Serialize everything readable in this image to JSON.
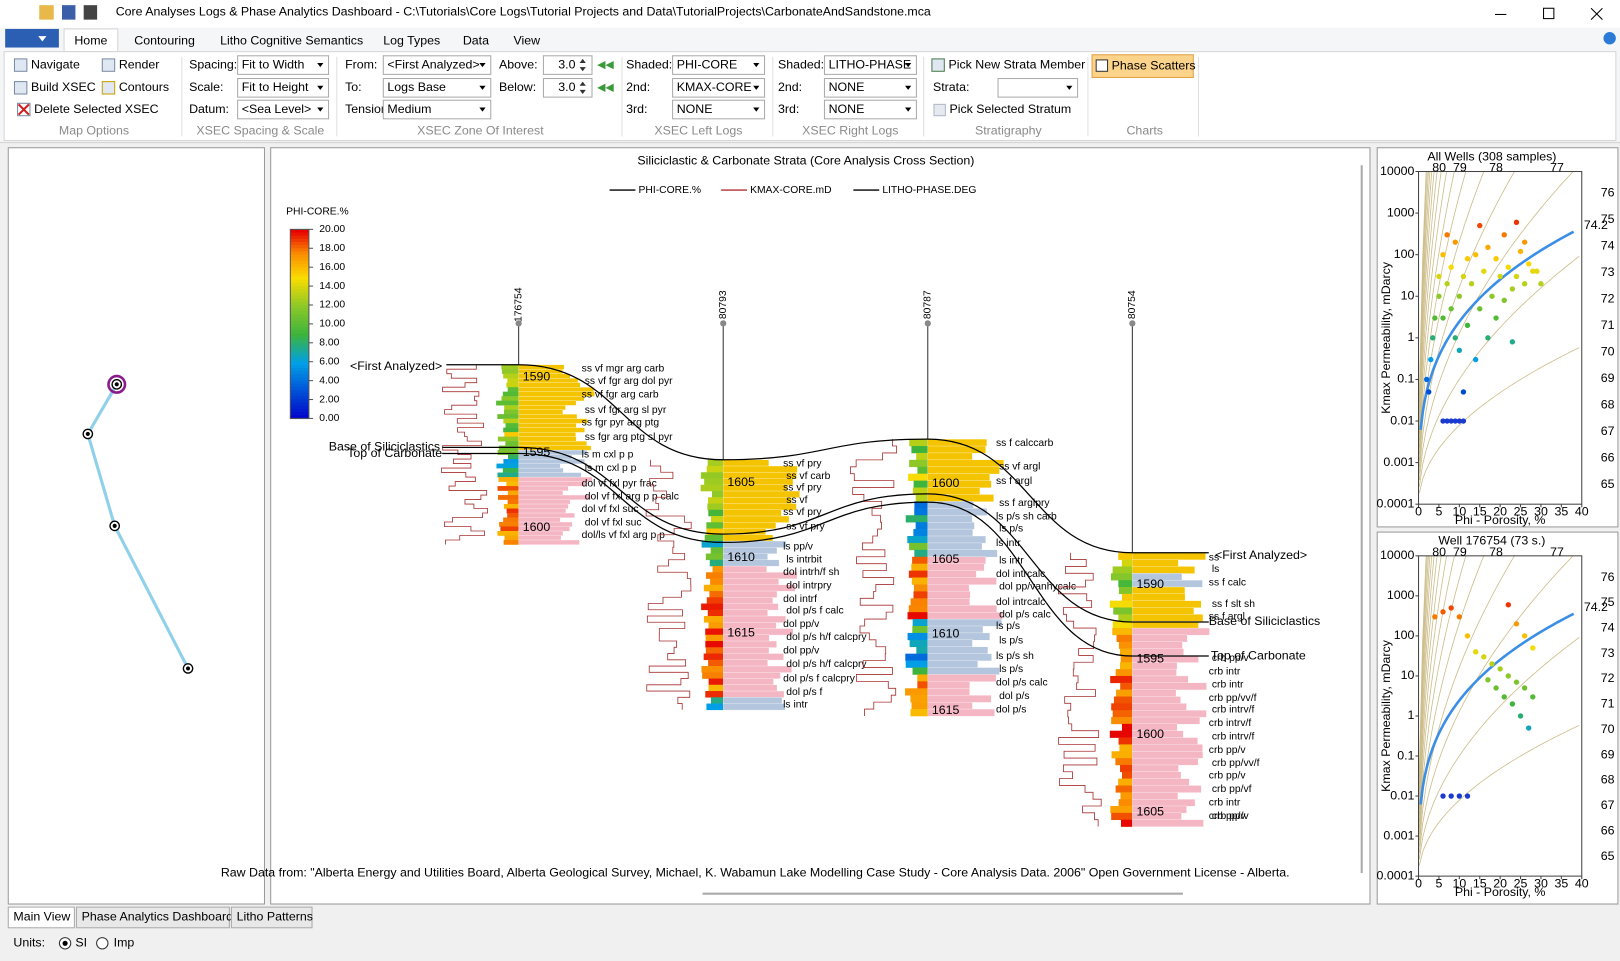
{
  "window": {
    "title": "Core Analyses Logs & Phase Analytics Dashboard - C:\\Tutorials\\Core Logs\\Tutorial Projects and Data\\TutorialProjects\\CarbonateAndSandstone.mca"
  },
  "ribbon": {
    "tabs": [
      "Home",
      "Contouring",
      "Litho Cognitive Semantics",
      "Log Types",
      "Data",
      "View"
    ],
    "groups": [
      {
        "label": "Map Options",
        "buttons": [
          "Navigate",
          "Render",
          "Build XSEC",
          "Contours",
          "Delete Selected XSEC"
        ]
      },
      {
        "label": "XSEC Spacing & Scale",
        "fields": [
          {
            "label": "Spacing:",
            "value": "Fit to Width"
          },
          {
            "label": "Scale:",
            "value": "Fit to Height"
          },
          {
            "label": "Datum:",
            "value": "<Sea Level>"
          }
        ]
      },
      {
        "label": "XSEC Zone Of Interest",
        "fields": [
          {
            "label": "From:",
            "value": "<First Analyzed>"
          },
          {
            "label": "To:",
            "value": "Logs Base"
          },
          {
            "label": "Tension:",
            "value": "Medium"
          }
        ],
        "spinners": [
          {
            "label": "Above:",
            "value": "3.0"
          },
          {
            "label": "Below:",
            "value": "3.0"
          }
        ]
      },
      {
        "label": "XSEC Left Logs",
        "fields": [
          {
            "label": "Shaded:",
            "value": "PHI-CORE"
          },
          {
            "label": "2nd:",
            "value": "KMAX-CORE"
          },
          {
            "label": "3rd:",
            "value": "NONE"
          }
        ]
      },
      {
        "label": "XSEC Right Logs",
        "fields": [
          {
            "label": "Shaded:",
            "value": "LITHO-PHASE"
          },
          {
            "label": "2nd:",
            "value": "NONE"
          },
          {
            "label": "3rd:",
            "value": "NONE"
          }
        ]
      },
      {
        "label": "Stratigraphy",
        "buttons": [
          "Pick New Strata Member",
          "Pick Selected Stratum"
        ],
        "fields": [
          {
            "label": "Strata:"
          }
        ]
      },
      {
        "label": "Charts",
        "buttons": [
          "Phase Scatters"
        ]
      }
    ]
  },
  "cross_section": {
    "title": "Siliciclastic & Carbonate Strata (Core Analysis Cross Section)",
    "legend": [
      "PHI-CORE.%",
      "KMAX-CORE.mD",
      "LITHO-PHASE.DEG"
    ],
    "colorbar": {
      "label": "PHI-CORE.%",
      "lim": [
        0,
        20
      ],
      "ticks": [
        {
          "value": 20,
          "label": "20.00"
        },
        {
          "value": 18,
          "label": "18.00"
        },
        {
          "value": 16,
          "label": "16.00"
        },
        {
          "value": 14,
          "label": "14.00"
        },
        {
          "value": 12,
          "label": "12.00"
        },
        {
          "value": 10,
          "label": "10.00"
        },
        {
          "value": 8,
          "label": "8.00"
        },
        {
          "value": 6,
          "label": "6.00"
        },
        {
          "value": 4,
          "label": "4.00"
        },
        {
          "value": 2,
          "label": "2.00"
        },
        {
          "value": 0,
          "label": "0.00"
        }
      ]
    },
    "wells": [
      {
        "name": "176754",
        "depths": [
          "1590",
          "1595",
          "1600"
        ],
        "lithology": [
          "ss vf mgr arg carb",
          "ss vf fgr arg dol pyr",
          "ss vf fgr arg carb",
          "ss vf fgr arg sl pyr",
          "ss fgr pyr arg ptg",
          "ss fgr arg ptg sl pyr",
          "ls m cxl p p",
          "ls m cxl p p",
          "dol vf fxl pyr frac",
          "dol vf fxl arg p p calc",
          "dol vf fxl suc",
          "dol vf fxl suc",
          "dol/ls vf fxl arg p p"
        ]
      },
      {
        "name": "80793",
        "depths": [
          "1605",
          "1610",
          "1615"
        ],
        "lithology": [
          "ss vf pry",
          "ss vf carb",
          "ss vf pry",
          "ss vf",
          "ss vf pry",
          "ss vf pry",
          "ls pp/v",
          "ls intrbit",
          "dol intrh/f sh",
          "dol intrpry",
          "dol intrf",
          "dol p/s f calc",
          "dol pp/v",
          "dol p/s h/f calcpry",
          "dol pp/v",
          "dol p/s h/f calcpry",
          "dol p/s f calcpry",
          "dol p/s f",
          "ls intr"
        ]
      },
      {
        "name": "80787",
        "depths": [
          "1600",
          "1605",
          "1610",
          "1615"
        ],
        "lithology": [
          "ss f calccarb",
          "ss vf argl",
          "ss f argl",
          "ss f arglpry",
          "ls p/s sh carb",
          "ls p/s",
          "ls intr",
          "ls intr",
          "dol intrcalc",
          "dol pp/vanhycalc",
          "dol intrcalc",
          "dol p/s calc",
          "ls p/s",
          "ls p/s",
          "ls p/s sh",
          "ls p/s",
          "dol p/s calc",
          "dol p/s",
          "dol p/s"
        ]
      },
      {
        "name": "80754",
        "depths": [
          "1590",
          "1595",
          "1600",
          "1605"
        ],
        "lithology": [
          "ss",
          "ls",
          "ss f calc",
          "ss f slt sh",
          "ss f argl",
          "crb pp/v",
          "crb intr",
          "crb intr",
          "crb pp/vv/f",
          "crb intrv/f",
          "crb intrv/f",
          "crb intrv/f",
          "crb pp/v",
          "crb pp/vv/f",
          "crb pp/v",
          "crb pp/vf",
          "crb intr",
          "crb pp/v",
          "crb pp/v"
        ]
      }
    ],
    "markers": [
      "<First Analyzed>",
      "Base of Siliciclastics",
      "Top of Carbonate",
      "<First Analyzed>",
      "Base of Siliciclastics",
      "Top of Carbonate"
    ],
    "footnote": "Raw Data from: \"Alberta Energy and Utilities Board, Alberta Geological Survey, Michael, K. Wabamun Lake Modelling Case Study - Core Analysis Data. 2006\" Open Government License - Alberta."
  },
  "scatters": [
    {
      "type": "scatter",
      "title": "All Wells (308 samples)",
      "y_label": "Kmax Permeability, mDarcy",
      "x_label": "Phi - Porosity, %",
      "xlim": [
        0,
        40
      ],
      "ylim": [
        0.0001,
        10000
      ],
      "log_y": true,
      "xticks": [
        0,
        5,
        10,
        15,
        20,
        25,
        30,
        35,
        40
      ],
      "yticks": [
        10000,
        1000,
        100,
        10,
        1,
        0.1,
        0.01,
        0.001,
        0.0001
      ],
      "iso_top": [
        80,
        79,
        78,
        77
      ],
      "iso_right": [
        76,
        75,
        74,
        73,
        72,
        71,
        70,
        69,
        68,
        67,
        66,
        65
      ],
      "fit_label": "74.2",
      "points": [
        [
          2,
          0.1
        ],
        [
          2.5,
          0.05
        ],
        [
          3,
          0.3
        ],
        [
          3.5,
          1
        ],
        [
          4,
          3
        ],
        [
          5,
          10
        ],
        [
          5,
          30
        ],
        [
          6,
          3
        ],
        [
          6,
          100
        ],
        [
          7,
          300
        ],
        [
          7,
          20
        ],
        [
          8,
          5
        ],
        [
          8,
          50
        ],
        [
          9,
          1
        ],
        [
          9,
          200
        ],
        [
          10,
          10
        ],
        [
          10,
          0.5
        ],
        [
          11,
          30
        ],
        [
          11,
          0.05
        ],
        [
          12,
          80
        ],
        [
          12,
          2
        ],
        [
          13,
          20
        ],
        [
          14,
          0.3
        ],
        [
          14,
          100
        ],
        [
          15,
          5
        ],
        [
          15,
          500
        ],
        [
          16,
          40
        ],
        [
          17,
          1
        ],
        [
          17,
          150
        ],
        [
          18,
          10
        ],
        [
          19,
          3
        ],
        [
          19,
          80
        ],
        [
          20,
          30
        ],
        [
          21,
          8
        ],
        [
          21,
          300
        ],
        [
          22,
          50
        ],
        [
          23,
          15
        ],
        [
          23,
          0.8
        ],
        [
          24,
          600
        ],
        [
          24,
          30
        ],
        [
          25,
          120
        ],
        [
          26,
          20
        ],
        [
          26,
          200
        ],
        [
          27,
          60
        ],
        [
          28,
          40
        ],
        [
          29,
          40
        ],
        [
          30,
          20
        ],
        [
          6,
          0.01
        ],
        [
          7,
          0.01
        ],
        [
          8,
          0.01
        ],
        [
          9,
          0.01
        ],
        [
          10,
          0.01
        ],
        [
          11,
          0.01
        ]
      ]
    },
    {
      "type": "scatter",
      "title": "Well 176754 (73 s.)",
      "y_label": "Kmax Permeability, mDarcy",
      "x_label": "Phi - Porosity, %",
      "xlim": [
        0,
        40
      ],
      "ylim": [
        0.0001,
        10000
      ],
      "log_y": true,
      "xticks": [
        0,
        5,
        10,
        15,
        20,
        25,
        30,
        35,
        40
      ],
      "yticks": [
        10000,
        1000,
        100,
        10,
        1,
        0.1,
        0.01,
        0.001,
        0.0001
      ],
      "iso_top": [
        80,
        79,
        78,
        77
      ],
      "iso_right": [
        76,
        75,
        74,
        73,
        72,
        71,
        70,
        69,
        68,
        67,
        66,
        65
      ],
      "fit_label": "74.2",
      "points": [
        [
          4,
          300
        ],
        [
          6,
          400
        ],
        [
          8,
          500
        ],
        [
          10,
          300
        ],
        [
          12,
          100
        ],
        [
          14,
          40
        ],
        [
          16,
          30
        ],
        [
          18,
          20
        ],
        [
          20,
          15
        ],
        [
          22,
          600
        ],
        [
          24,
          200
        ],
        [
          26,
          100
        ],
        [
          28,
          50
        ],
        [
          17,
          8
        ],
        [
          19,
          5
        ],
        [
          21,
          3
        ],
        [
          23,
          2
        ],
        [
          25,
          1
        ],
        [
          27,
          0.5
        ],
        [
          6,
          0.01
        ],
        [
          8,
          0.01
        ],
        [
          10,
          0.01
        ],
        [
          12,
          0.01
        ],
        [
          22,
          10
        ],
        [
          24,
          7
        ],
        [
          26,
          5
        ],
        [
          28,
          3
        ]
      ]
    }
  ],
  "bottom": {
    "tabs": [
      "Main View",
      "Phase Analytics Dashboard",
      "Litho Patterns"
    ],
    "units_label": "Units:",
    "units": [
      "SI",
      "Imp"
    ]
  }
}
